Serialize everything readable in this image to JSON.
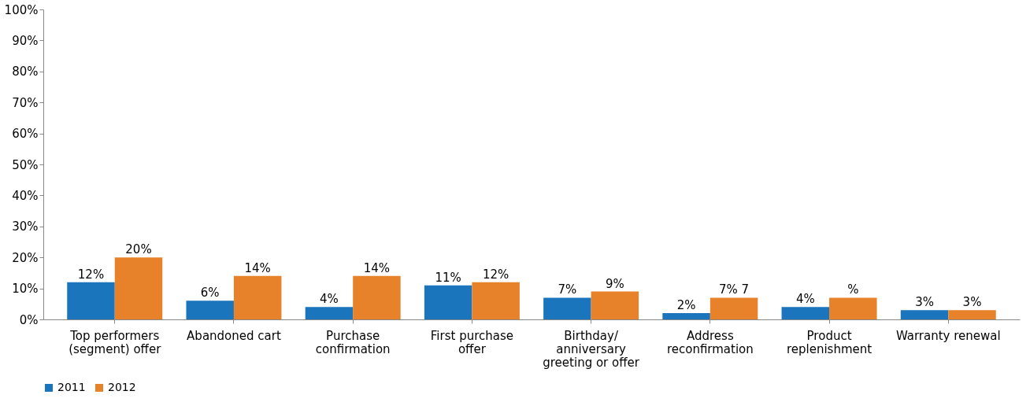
{
  "chart_data": {
    "type": "bar",
    "categories": [
      "Top performers (segment) offer",
      "Abandoned cart",
      "Purchase confirmation",
      "First purchase offer",
      "Birthday/ anniversary greeting or offer",
      "Address reconfirmation",
      "Product replenishment",
      "Warranty renewal"
    ],
    "series": [
      {
        "name": "2011",
        "color": "#1a75bc",
        "values": [
          12,
          6,
          4,
          11,
          7,
          2,
          4,
          3
        ],
        "value_labels": [
          "12%",
          "6%",
          "4%",
          "11%",
          "7%",
          "2%",
          "4%",
          "3%"
        ]
      },
      {
        "name": "2012",
        "color": "#e8822a",
        "values": [
          20,
          14,
          14,
          12,
          9,
          7,
          7,
          3
        ],
        "value_labels": [
          "20%",
          "14%",
          "14%",
          "12%",
          "9%",
          "7% 7",
          "%",
          "3%"
        ]
      }
    ],
    "ylim": [
      0,
      100
    ],
    "yticks": [
      {
        "value": 0,
        "label": "0%"
      },
      {
        "value": 10,
        "label": "10%"
      },
      {
        "value": 20,
        "label": "20%"
      },
      {
        "value": 30,
        "label": "30%"
      },
      {
        "value": 40,
        "label": "40%"
      },
      {
        "value": 50,
        "label": "50%"
      },
      {
        "value": 60,
        "label": "60%"
      },
      {
        "value": 70,
        "label": "70%"
      },
      {
        "value": 80,
        "label": "80%"
      },
      {
        "value": 90,
        "label": "90%"
      },
      {
        "value": 100,
        "label": "100%"
      }
    ],
    "grid": false,
    "legend": "bottom"
  }
}
